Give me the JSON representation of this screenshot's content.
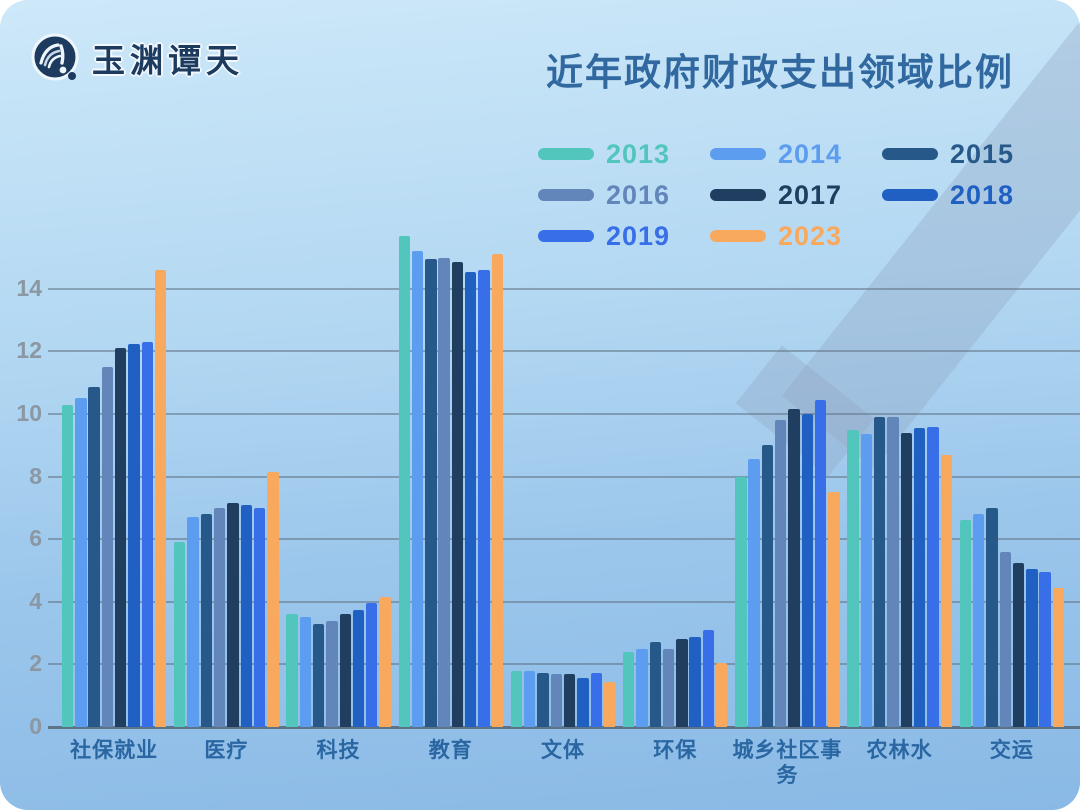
{
  "header": {
    "logo_text": "玉渊谭天",
    "title": "近年政府财政支出领域比例"
  },
  "axis": {
    "yticks": [
      0,
      2,
      4,
      6,
      8,
      10,
      12,
      14
    ]
  },
  "chart_data": {
    "type": "bar",
    "title": "近年政府财政支出领域比例",
    "xlabel": "",
    "ylabel": "",
    "ylim": [
      0,
      16
    ],
    "yticks": [
      0,
      2,
      4,
      6,
      8,
      10,
      12,
      14
    ],
    "grid": true,
    "legend_position": "top-center",
    "categories": [
      "社保就业",
      "医疗",
      "科技",
      "教育",
      "文体",
      "环保",
      "城乡社区事务",
      "农林水",
      "交运"
    ],
    "series": [
      {
        "name": "2013",
        "color": "#52c5bd",
        "values": [
          10.3,
          5.9,
          3.6,
          15.7,
          1.8,
          2.4,
          8.0,
          9.5,
          6.6
        ]
      },
      {
        "name": "2014",
        "color": "#5d9df0",
        "values": [
          10.5,
          6.7,
          3.5,
          15.2,
          1.78,
          2.5,
          8.55,
          9.35,
          6.8
        ]
      },
      {
        "name": "2015",
        "color": "#26598a",
        "values": [
          10.85,
          6.8,
          3.3,
          14.95,
          1.73,
          2.7,
          9.0,
          9.9,
          7.0
        ]
      },
      {
        "name": "2016",
        "color": "#6286ba",
        "values": [
          11.5,
          7.0,
          3.4,
          15.0,
          1.7,
          2.5,
          9.8,
          9.9,
          5.6
        ]
      },
      {
        "name": "2017",
        "color": "#1f3e60",
        "values": [
          12.1,
          7.15,
          3.6,
          14.85,
          1.68,
          2.8,
          10.15,
          9.4,
          5.25
        ]
      },
      {
        "name": "2018",
        "color": "#2160c3",
        "values": [
          12.25,
          7.1,
          3.75,
          14.55,
          1.58,
          2.86,
          10.0,
          9.55,
          5.05
        ]
      },
      {
        "name": "2019",
        "color": "#386fe8",
        "values": [
          12.3,
          7.0,
          3.95,
          14.6,
          1.72,
          3.1,
          10.45,
          9.6,
          4.95
        ]
      },
      {
        "name": "2023",
        "color": "#f9a95d",
        "values": [
          14.6,
          8.15,
          4.15,
          15.1,
          1.45,
          2.05,
          7.5,
          8.7,
          4.45
        ]
      }
    ]
  }
}
